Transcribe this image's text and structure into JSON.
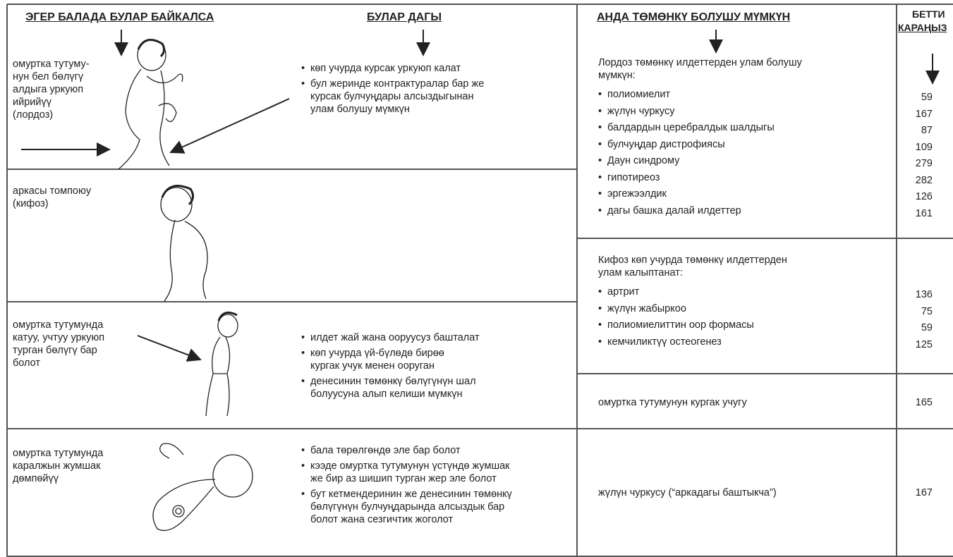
{
  "headers": {
    "signs": "ЭГЕР БАЛАДА БУЛАР БАЙКАЛСА",
    "also": "БУЛАР ДАГЫ",
    "causes": "АНДА ТӨМӨНКҮ БОЛУШУ МҮМКҮН",
    "page": [
      "БЕТТИ",
      "КАРАҢЫЗ"
    ]
  },
  "rows": [
    {
      "sign": [
        "омуртка тутуму-",
        "нун бел бөлүгү",
        "алдыга уркуюп",
        "ийрийүү",
        "(лордоз)"
      ],
      "notes": [
        [
          "көп учурда курсак уркуюп калат"
        ],
        [
          "бул жеринде контрактуралар бар же",
          "курсак булчуңдары алсыздыгынан",
          "улам болушу мүмкүн"
        ]
      ]
    },
    {
      "sign": [
        "аркасы томпоюу",
        "(кифоз)"
      ],
      "notes": []
    },
    {
      "sign": [
        "омуртка тутумунда",
        "катуу, учтуу уркуюп",
        "турган бөлүгү бар",
        "болот"
      ],
      "notes": [
        [
          "илдет жай жана ооруусуз башталат"
        ],
        [
          "көп учурда үй-бүлөдө бирөө",
          "кургак учук менен ооруган"
        ],
        [
          "денесинин төмөнкү бөлүгүнүн шал",
          "болуусуна алып келиши мүмкүн"
        ]
      ]
    },
    {
      "sign": [
        "омуртка тутумунда",
        "каралжын жумшак",
        "дөмпөйүү"
      ],
      "notes": [
        [
          "бала төрөлгөндө эле бар болот"
        ],
        [
          "кээде омуртка тутумунун үстүндө жумшак",
          "же бир аз шишип турган жер эле болот"
        ],
        [
          "бут кетмендеринин же денесинин төмөнкү",
          "бөлүгүнүн булчуңдарында алсыздык бар",
          "болот жана сезгичтик жоголот"
        ]
      ]
    }
  ],
  "causes": [
    {
      "intro": [
        "Лордоз төмөнкү илдеттерден улам болушу",
        "мүмкүн:"
      ],
      "items": [
        {
          "name": "полиомиелит",
          "page": 59
        },
        {
          "name": "жүлүн чуркусу",
          "page": 167
        },
        {
          "name": "балдардын церебралдык шалдыгы",
          "page": 87
        },
        {
          "name": "булчуңдар дистрофиясы",
          "page": 109
        },
        {
          "name": "Даун синдрому",
          "page": 279
        },
        {
          "name": "гипотиреоз",
          "page": 282
        },
        {
          "name": "эргежээлдик",
          "page": 126
        },
        {
          "name": "дагы башка далай илдеттер",
          "page": 161
        }
      ]
    },
    {
      "intro": [
        "Кифоз көп учурда төмөнкү илдеттерден",
        "улам калыптанат:"
      ],
      "items": [
        {
          "name": "артрит",
          "page": 136
        },
        {
          "name": "жүлүн жабыркоо",
          "page": 75
        },
        {
          "name": "полиомиелиттин оор формасы",
          "page": 59
        },
        {
          "name": "кемчиликтүү остеогенез",
          "page": 125
        }
      ]
    },
    {
      "text": "омуртка тутумунун кургак учугу",
      "page": 165
    },
    {
      "text": "жүлүн чуркусу (“аркадагы баштыкча”)",
      "page": 167
    }
  ]
}
